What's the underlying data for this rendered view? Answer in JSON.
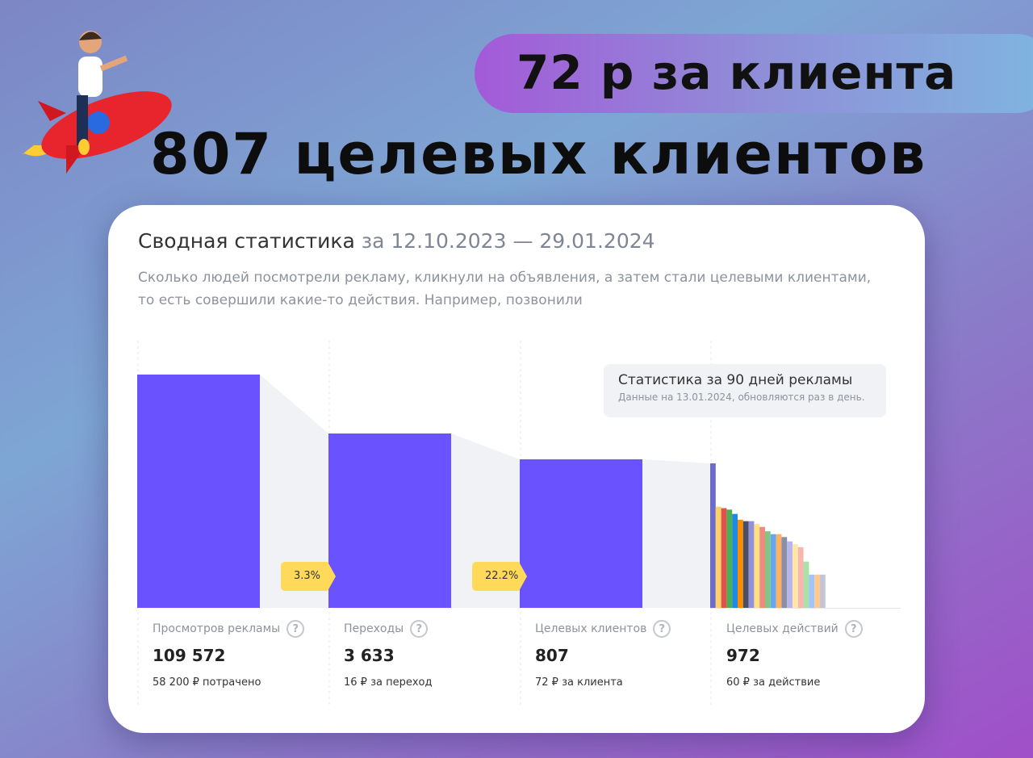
{
  "banner": {
    "price_text": "72 р за клиента",
    "headline": "807 целевых клиентов"
  },
  "card": {
    "title": "Сводная статистика",
    "title_dates": "за 12.10.2023 — 29.01.2024",
    "subtitle": "Сколько людей посмотрели рекламу, кликнули на объявления, а затем стали целевыми клиентами, то есть совершили какие-то действия. Например, позвонили",
    "tooltip": {
      "title": "Статистика за 90 дней рекламы",
      "text": "Данные на 13.01.2024, обновляются раз в день."
    },
    "conversions": [
      "3.3%",
      "22.2%"
    ],
    "stats": [
      {
        "label": "Просмотров рекламы",
        "value": "109 572",
        "note": "58 200 ₽ потрачено"
      },
      {
        "label": "Переходы",
        "value": "3 633",
        "note": "16 ₽ за переход"
      },
      {
        "label": "Целевых клиентов",
        "value": "807",
        "note": "72 ₽ за клиента"
      },
      {
        "label": "Целевых действий",
        "value": "972",
        "note": "60 ₽ за действие"
      }
    ],
    "help_icon": "?"
  },
  "chart_data": {
    "type": "bar",
    "categories": [
      "Просмотров рекламы",
      "Переходы",
      "Целевых клиентов",
      "Целевых действий"
    ],
    "values": [
      109572,
      3633,
      807,
      972
    ],
    "bar_color": "#6a52ff",
    "funnel_color": "#f1f2f6",
    "action_breakdown_relative": [
      1.0,
      0.7,
      0.69,
      0.68,
      0.65,
      0.61,
      0.6,
      0.6,
      0.58,
      0.56,
      0.53,
      0.51,
      0.51,
      0.49,
      0.46,
      0.44,
      0.42,
      0.32,
      0.23,
      0.23,
      0.23
    ],
    "action_breakdown_colors": [
      "#6b6bc8",
      "#ffd166",
      "#e0524f",
      "#4cb050",
      "#1e88e5",
      "#fb8c00",
      "#4a4f6a",
      "#9591d8",
      "#ffe082",
      "#ef8a80",
      "#81c784",
      "#64a6f0",
      "#ffb062",
      "#8790a8",
      "#b8b4ec",
      "#ffe7a8",
      "#f8b6ae",
      "#a9e2a9",
      "#9fc6f8",
      "#ffc890",
      "#c2c6d8",
      "#cfd0f8"
    ]
  }
}
